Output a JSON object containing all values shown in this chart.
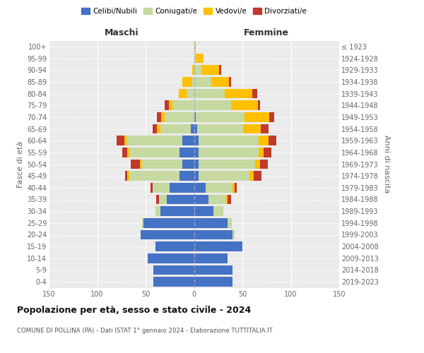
{
  "age_groups": [
    "0-4",
    "5-9",
    "10-14",
    "15-19",
    "20-24",
    "25-29",
    "30-34",
    "35-39",
    "40-44",
    "45-49",
    "50-54",
    "55-59",
    "60-64",
    "65-69",
    "70-74",
    "75-79",
    "80-84",
    "85-89",
    "90-94",
    "95-99",
    "100+"
  ],
  "birth_years": [
    "2019-2023",
    "2014-2018",
    "2009-2013",
    "2004-2008",
    "1999-2003",
    "1994-1998",
    "1989-1993",
    "1984-1988",
    "1979-1983",
    "1974-1978",
    "1969-1973",
    "1964-1968",
    "1959-1963",
    "1954-1958",
    "1949-1953",
    "1944-1948",
    "1939-1943",
    "1934-1938",
    "1929-1933",
    "1924-1928",
    "≤ 1923"
  ],
  "maschi": {
    "celibi": [
      42,
      42,
      48,
      40,
      55,
      52,
      35,
      28,
      25,
      15,
      12,
      15,
      12,
      3,
      0,
      0,
      0,
      0,
      0,
      0,
      0
    ],
    "coniugati": [
      0,
      0,
      0,
      0,
      0,
      2,
      5,
      8,
      18,
      52,
      42,
      52,
      58,
      32,
      30,
      22,
      8,
      2,
      0,
      0,
      0
    ],
    "vedovi": [
      0,
      0,
      0,
      0,
      0,
      0,
      0,
      0,
      0,
      2,
      2,
      2,
      2,
      3,
      4,
      4,
      8,
      10,
      2,
      0,
      0
    ],
    "divorziati": [
      0,
      0,
      0,
      0,
      0,
      0,
      0,
      3,
      2,
      2,
      9,
      5,
      8,
      5,
      4,
      4,
      0,
      0,
      0,
      0,
      0
    ]
  },
  "femmine": {
    "nubili": [
      40,
      40,
      35,
      50,
      40,
      35,
      20,
      15,
      12,
      5,
      5,
      5,
      5,
      3,
      2,
      0,
      0,
      0,
      0,
      0,
      0
    ],
    "coniugate": [
      0,
      0,
      0,
      0,
      2,
      4,
      10,
      18,
      28,
      52,
      58,
      62,
      62,
      48,
      50,
      38,
      32,
      18,
      8,
      2,
      0
    ],
    "vedove": [
      0,
      0,
      0,
      0,
      0,
      0,
      0,
      2,
      2,
      5,
      5,
      5,
      10,
      18,
      26,
      28,
      28,
      18,
      18,
      8,
      2
    ],
    "divorziate": [
      0,
      0,
      0,
      0,
      0,
      0,
      0,
      3,
      2,
      8,
      8,
      8,
      8,
      8,
      5,
      2,
      5,
      2,
      2,
      0,
      0
    ]
  },
  "colors": {
    "celibi": "#4472C4",
    "coniugati": "#c5d9a0",
    "vedovi": "#ffc000",
    "divorziati": "#c0392b"
  },
  "title": "Popolazione per età, sesso e stato civile - 2024",
  "subtitle": "COMUNE DI POLLINA (PA) - Dati ISTAT 1° gennaio 2024 - Elaborazione TUTTITALIA.IT",
  "xlabel_left": "Maschi",
  "xlabel_right": "Femmine",
  "ylabel_left": "Fasce di età",
  "ylabel_right": "Anni di nascita",
  "xlim": 150,
  "legend_labels": [
    "Celibi/Nubili",
    "Coniugati/e",
    "Vedovi/e",
    "Divorziati/e"
  ],
  "bg_color": "#ffffff",
  "plot_bg": "#ebebeb",
  "bar_height": 0.82
}
